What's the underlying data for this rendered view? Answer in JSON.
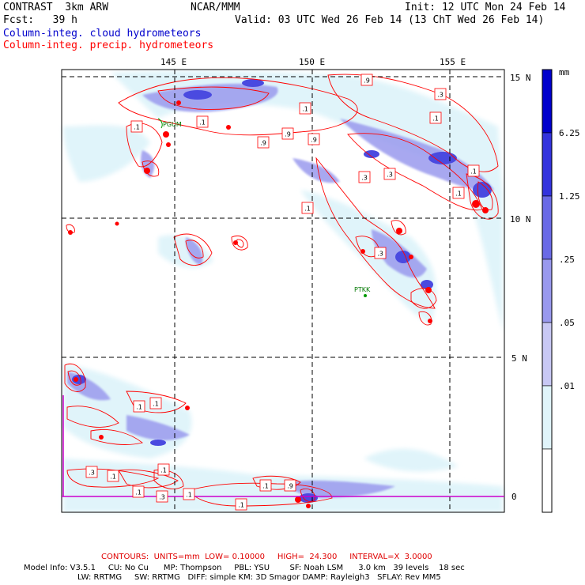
{
  "header": {
    "model": "CONTRAST  3km ARW",
    "org": "NCAR/MMM",
    "init": "Init: 12 UTC Mon 24 Feb 14",
    "fcst": "Fcst:   39 h",
    "valid": "Valid: 03 UTC Wed 26 Feb 14 (13 ChT Wed 26 Feb 14)",
    "field_cloud": "Column-integ. cloud hydrometeors",
    "field_precip": "Column-integ. precip. hydrometeors"
  },
  "map": {
    "lon_labels": [
      "145 E",
      "150 E",
      "155 E"
    ],
    "lat_labels": [
      "15 N",
      "10 N",
      "5 N",
      "0"
    ],
    "stations": [
      "PTKK",
      "PGUM"
    ],
    "contour_labels": [
      ".1",
      ".9",
      ".3",
      ".1",
      ".1",
      ".9",
      ".9",
      ".9",
      ".1",
      ".3",
      ".3",
      ".1",
      ".1",
      ".1",
      ".3",
      ".1",
      ".1",
      ".3",
      ".1",
      ".1",
      ".1",
      ".3",
      ".1",
      ".1",
      ".9",
      ".1"
    ],
    "colors": {
      "contour": "#ff0000",
      "land": "#009900",
      "frame": "#000000",
      "boundary": "#cc00cc"
    }
  },
  "legend": {
    "unit": "mm",
    "values": [
      "6.25",
      "1.25",
      ".25",
      ".05",
      ".01"
    ],
    "colors": [
      "#0000cc",
      "#3333dd",
      "#6a6ae6",
      "#9999ee",
      "#c8c8f4",
      "#e0f4fa",
      "#ffffff"
    ]
  },
  "footer": {
    "contours": "CONTOURS:  UNITS=mm  LOW= 0.10000     HIGH=  24.300     INTERVAL=X  3.0000",
    "model_info": "Model Info: V3.5.1     CU: No Cu      MP: Thompson     PBL: YSU        SF: Noah LSM      3.0 km   39 levels    18 sec",
    "model_info2": "LW: RRTMG     SW: RRTMG   DIFF: simple KM: 3D Smagor DAMP: Rayleigh3   SFLAY: Rev MM5"
  }
}
